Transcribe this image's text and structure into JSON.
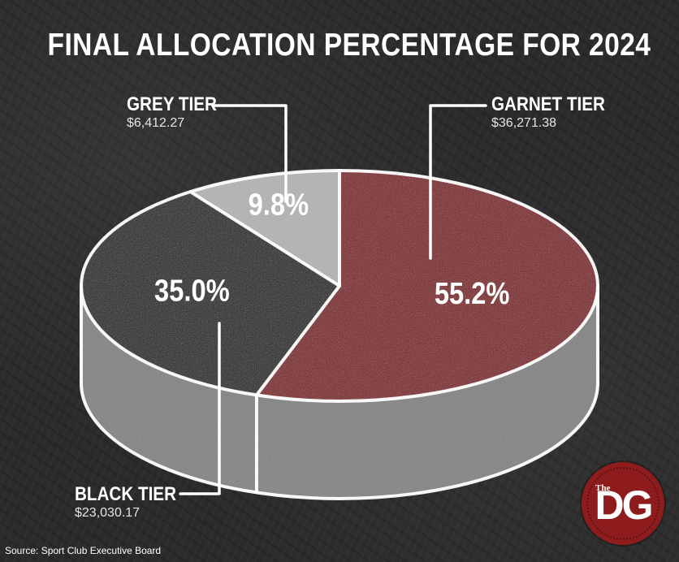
{
  "title": "FINAL ALLOCATION PERCENTAGE FOR 2024",
  "source": "Source: Sport Club Executive Board",
  "logo": {
    "small": "The",
    "main": "DG"
  },
  "colors": {
    "garnet": "#7c0a12",
    "black": "#141414",
    "grey": "#b3b3b3",
    "background": "#2b2b2b",
    "chalk": "#ffffff"
  },
  "chart_data": {
    "type": "pie",
    "title": "FINAL ALLOCATION PERCENTAGE FOR 2024",
    "slices": [
      {
        "label": "GARNET TIER",
        "amount": "$36,271.38",
        "value": 55.2,
        "percent_label": "55.2%",
        "color": "#7c0a12"
      },
      {
        "label": "BLACK TIER",
        "amount": "$23,030.17",
        "value": 35.0,
        "percent_label": "35.0%",
        "color": "#141414"
      },
      {
        "label": "GREY TIER",
        "amount": "$6,412.27",
        "value": 9.8,
        "percent_label": "9.8%",
        "color": "#b3b3b3"
      }
    ]
  }
}
